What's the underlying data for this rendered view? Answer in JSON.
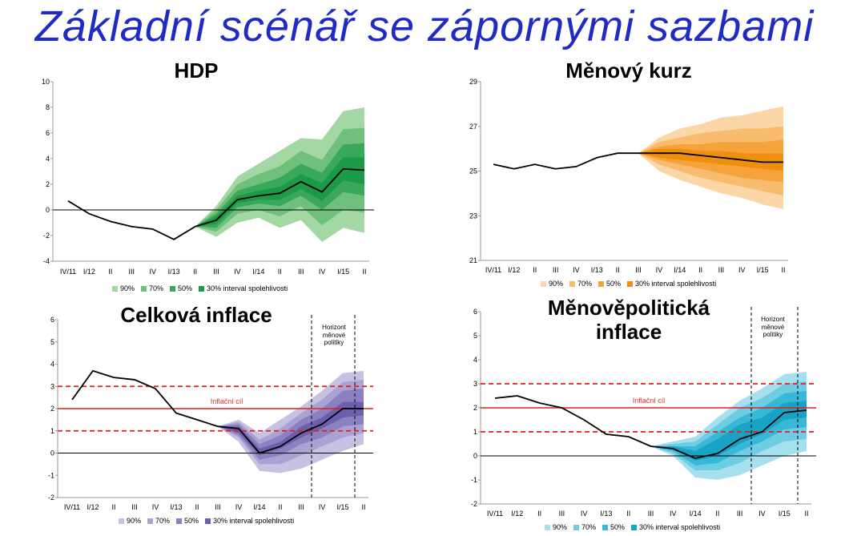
{
  "slide": {
    "title": "Základní scénář se zápornými sazbami"
  },
  "chart_data": [
    {
      "id": "hdp",
      "type": "fan",
      "title": "HDP",
      "categories": [
        "IV/11",
        "I/12",
        "II",
        "III",
        "IV",
        "I/13",
        "II",
        "III",
        "IV",
        "I/14",
        "II",
        "III",
        "IV",
        "I/15",
        "II"
      ],
      "ylim": [
        -4,
        10
      ],
      "yticks": [
        -4,
        -2,
        0,
        2,
        4,
        6,
        8,
        10
      ],
      "line": [
        0.7,
        -0.3,
        -0.9,
        -1.3,
        -1.5,
        -2.3,
        -1.3,
        -0.8,
        0.8,
        1.1,
        1.3,
        2.2,
        1.4,
        3.2,
        3.1
      ],
      "fan_start": 6,
      "bands": [
        {
          "name": "90%",
          "color": "#a3d7a3",
          "lower": [
            -1.3,
            -2.1,
            -1.0,
            -0.6,
            -1.4,
            -0.8,
            -2.5,
            -1.4,
            -1.8
          ],
          "upper": [
            -1.3,
            0.3,
            2.6,
            3.6,
            4.6,
            5.6,
            5.5,
            7.7,
            8.0
          ]
        },
        {
          "name": "70%",
          "color": "#6fc07a",
          "lower": [
            -1.3,
            -1.7,
            -0.3,
            0.0,
            -0.5,
            0.3,
            -1.2,
            0.0,
            -0.2
          ],
          "upper": [
            -1.3,
            0.0,
            2.0,
            2.8,
            3.4,
            4.6,
            3.9,
            6.3,
            6.4
          ]
        },
        {
          "name": "50%",
          "color": "#3aa85a",
          "lower": [
            -1.3,
            -1.4,
            0.2,
            0.5,
            0.3,
            1.1,
            0.0,
            1.4,
            1.1
          ],
          "upper": [
            -1.3,
            -0.3,
            1.5,
            2.0,
            2.5,
            3.6,
            2.9,
            5.1,
            5.2
          ]
        },
        {
          "name": "30% interval spolehlivosti",
          "color": "#1b9a48",
          "lower": [
            -1.3,
            -1.1,
            0.5,
            0.8,
            0.8,
            1.6,
            0.7,
            2.3,
            2.0
          ],
          "upper": [
            -1.3,
            -0.5,
            1.1,
            1.5,
            1.8,
            2.8,
            2.1,
            4.1,
            4.1
          ]
        }
      ],
      "zero_line": true
    },
    {
      "id": "kurz",
      "type": "fan",
      "title": "Měnový kurz",
      "categories": [
        "IV/11",
        "I/12",
        "II",
        "III",
        "IV",
        "I/13",
        "II",
        "III",
        "IV",
        "I/14",
        "II",
        "III",
        "IV",
        "I/15",
        "II"
      ],
      "ylim": [
        21,
        29
      ],
      "yticks": [
        21,
        23,
        25,
        27,
        29
      ],
      "line": [
        25.3,
        25.1,
        25.3,
        25.1,
        25.2,
        25.6,
        25.8,
        25.8,
        25.8,
        25.8,
        25.7,
        25.6,
        25.5,
        25.4,
        25.4
      ],
      "fan_start": 7,
      "bands": [
        {
          "name": "90%",
          "color": "#fbd6a6",
          "lower": [
            25.8,
            25.0,
            24.6,
            24.3,
            24.0,
            23.8,
            23.5,
            23.3
          ],
          "upper": [
            25.8,
            26.5,
            26.9,
            27.1,
            27.4,
            27.5,
            27.7,
            27.9
          ]
        },
        {
          "name": "70%",
          "color": "#f9bb6d",
          "lower": [
            25.8,
            25.3,
            25.0,
            24.7,
            24.5,
            24.3,
            24.1,
            23.9
          ],
          "upper": [
            25.8,
            26.3,
            26.5,
            26.7,
            26.8,
            26.9,
            26.9,
            27.0
          ]
        },
        {
          "name": "50%",
          "color": "#f6a33c",
          "lower": [
            25.8,
            25.5,
            25.3,
            25.1,
            24.9,
            24.7,
            24.6,
            24.5
          ],
          "upper": [
            25.8,
            26.1,
            26.2,
            26.2,
            26.3,
            26.3,
            26.3,
            26.4
          ]
        },
        {
          "name": "30% interval spolehlivosti",
          "color": "#ee8f10",
          "lower": [
            25.8,
            25.6,
            25.5,
            25.4,
            25.3,
            25.2,
            25.1,
            25.0
          ],
          "upper": [
            25.8,
            26.0,
            26.0,
            25.9,
            25.9,
            25.8,
            25.8,
            25.8
          ]
        }
      ]
    },
    {
      "id": "inflace",
      "type": "fan",
      "title": "Celková inflace",
      "categories": [
        "IV/11",
        "I/12",
        "II",
        "III",
        "IV",
        "I/13",
        "II",
        "III",
        "IV",
        "I/14",
        "II",
        "III",
        "IV",
        "I/15",
        "II"
      ],
      "ylim": [
        -2,
        6
      ],
      "yticks": [
        -2,
        -1,
        0,
        1,
        2,
        3,
        4,
        5,
        6
      ],
      "line": [
        2.4,
        3.7,
        3.4,
        3.3,
        2.9,
        1.8,
        1.5,
        1.2,
        1.1,
        0.0,
        0.3,
        0.9,
        1.3,
        2.0,
        2.0
      ],
      "fan_start": 7,
      "bands": [
        {
          "name": "90%",
          "color": "#c8c2e2",
          "lower": [
            1.2,
            0.5,
            -0.8,
            -0.9,
            -0.7,
            -0.3,
            0.1,
            0.4
          ],
          "upper": [
            1.2,
            1.5,
            0.9,
            1.5,
            2.1,
            2.8,
            3.6,
            3.7
          ]
        },
        {
          "name": "70%",
          "color": "#aaa2d2",
          "lower": [
            1.2,
            0.7,
            -0.5,
            -0.5,
            -0.1,
            0.3,
            0.7,
            0.9
          ],
          "upper": [
            1.2,
            1.4,
            0.6,
            1.1,
            1.8,
            2.4,
            3.2,
            3.3
          ]
        },
        {
          "name": "50%",
          "color": "#8b80c0",
          "lower": [
            1.2,
            0.8,
            -0.3,
            -0.1,
            0.4,
            0.7,
            1.2,
            1.3
          ],
          "upper": [
            1.2,
            1.3,
            0.4,
            0.8,
            1.5,
            2.0,
            2.8,
            2.9
          ]
        },
        {
          "name": "30% interval spolehlivosti",
          "color": "#6c5fae",
          "lower": [
            1.2,
            0.9,
            -0.1,
            0.2,
            0.7,
            1.1,
            1.6,
            1.7
          ],
          "upper": [
            1.2,
            1.2,
            0.2,
            0.5,
            1.2,
            1.6,
            2.3,
            2.3
          ]
        }
      ],
      "target": 2,
      "tolerance": [
        1,
        3
      ],
      "target_label": "Inflační cíl",
      "horizon_label": [
        "Horizont",
        "měnové",
        "politiky"
      ],
      "zero_line": true
    },
    {
      "id": "mp",
      "type": "fan",
      "title": "Měnověpolitická inflace",
      "categories": [
        "IV/11",
        "I/12",
        "II",
        "III",
        "IV",
        "I/13",
        "II",
        "III",
        "IV",
        "I/14",
        "II",
        "III",
        "IV",
        "I/15",
        "II"
      ],
      "ylim": [
        -2,
        6
      ],
      "yticks": [
        -2,
        -1,
        0,
        1,
        2,
        3,
        4,
        5,
        6
      ],
      "line": [
        2.4,
        2.5,
        2.2,
        2.0,
        1.5,
        0.9,
        0.8,
        0.4,
        0.3,
        -0.1,
        0.1,
        0.7,
        1.0,
        1.8,
        1.9
      ],
      "fan_start": 7,
      "bands": [
        {
          "name": "90%",
          "color": "#a6e0ee",
          "lower": [
            0.4,
            0.0,
            -0.9,
            -1.0,
            -0.8,
            -0.4,
            0.0,
            0.2
          ],
          "upper": [
            0.4,
            0.6,
            0.8,
            1.6,
            2.3,
            2.8,
            3.4,
            3.5
          ]
        },
        {
          "name": "70%",
          "color": "#6ecde3",
          "lower": [
            0.4,
            0.1,
            -0.6,
            -0.6,
            -0.3,
            0.2,
            0.6,
            0.7
          ],
          "upper": [
            0.4,
            0.5,
            0.6,
            1.3,
            2.0,
            2.4,
            3.0,
            3.1
          ]
        },
        {
          "name": "50%",
          "color": "#38b8d6",
          "lower": [
            0.4,
            0.2,
            -0.4,
            -0.3,
            0.2,
            0.6,
            1.1,
            1.2
          ],
          "upper": [
            0.4,
            0.4,
            0.4,
            1.0,
            1.6,
            2.0,
            2.6,
            2.7
          ]
        },
        {
          "name": "30% interval spolehlivosti",
          "color": "#16a3c4",
          "lower": [
            0.4,
            0.3,
            -0.2,
            0.0,
            0.5,
            0.9,
            1.5,
            1.6
          ],
          "upper": [
            0.4,
            0.4,
            0.2,
            0.7,
            1.3,
            1.6,
            2.2,
            2.3
          ]
        }
      ],
      "target": 2,
      "tolerance": [
        1,
        3
      ],
      "target_label": "Inflační cíl",
      "horizon_label": [
        "Horizont",
        "měnové",
        "politiky"
      ],
      "zero_line": true
    }
  ]
}
